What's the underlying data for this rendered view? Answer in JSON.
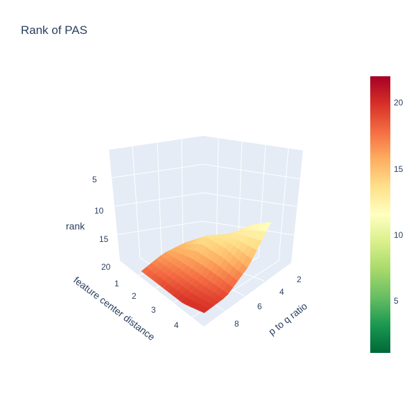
{
  "title": "Rank of PAS",
  "colors": {
    "text": "#2a3f5f",
    "pane": "#e5ecf6",
    "grid": "#ffffff",
    "colorscale": [
      "#006837",
      "#1a9850",
      "#66bd63",
      "#a6d96a",
      "#d9ef8b",
      "#ffffbf",
      "#fee08b",
      "#fdae61",
      "#f46d43",
      "#d73027",
      "#a50026"
    ]
  },
  "chart_data": {
    "type": "surface",
    "colorscale_name": "RdYlGn (reversed)",
    "x_axis": {
      "label": "feature center distance",
      "ticks": [
        "1",
        "2",
        "3",
        "4"
      ],
      "range": [
        0.8,
        4.5
      ]
    },
    "y_axis": {
      "label": "p to q ratio",
      "ticks": [
        "2",
        "4",
        "6",
        "8"
      ],
      "range": [
        1,
        9.5
      ]
    },
    "z_axis": {
      "label": "rank",
      "ticks": [
        "5",
        "10",
        "15",
        "20"
      ],
      "range": [
        0,
        21
      ],
      "reversed": true
    },
    "colorbar": {
      "ticks": [
        "5",
        "10",
        "15",
        "20"
      ],
      "range": [
        1,
        22
      ]
    },
    "surface": {
      "x": [
        1,
        2,
        3,
        4
      ],
      "y": [
        2,
        4,
        6,
        8
      ],
      "z": [
        [
          15,
          14,
          12,
          11
        ],
        [
          15,
          13,
          14,
          16
        ],
        [
          16,
          17,
          18,
          19
        ],
        [
          18,
          19,
          20,
          20
        ]
      ]
    }
  }
}
